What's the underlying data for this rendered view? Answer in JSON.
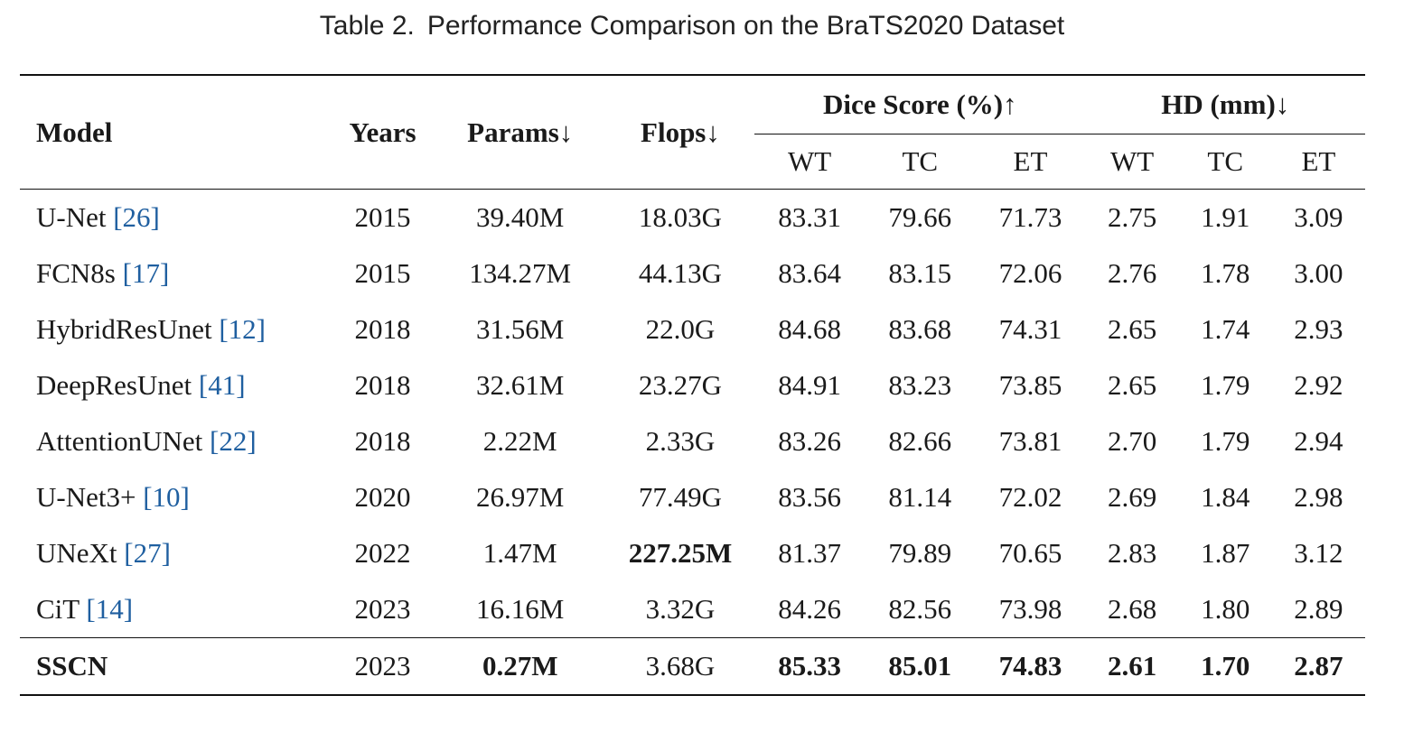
{
  "caption": {
    "label": "Table 2.",
    "text": "Performance Comparison on the BraTS2020 Dataset"
  },
  "header": {
    "model": "Model",
    "years": "Years",
    "params": "Params↓",
    "flops": "Flops↓",
    "dice_group": "Dice Score (%)↑",
    "hd_group": "HD (mm)↓",
    "dice_sub": [
      "WT",
      "TC",
      "ET"
    ],
    "hd_sub": [
      "WT",
      "TC",
      "ET"
    ]
  },
  "rows": [
    {
      "name": "U-Net",
      "ref": "[26]",
      "year": "2015",
      "params": "39.40M",
      "flops": "18.03G",
      "dice": [
        "83.31",
        "79.66",
        "71.73"
      ],
      "hd": [
        "2.75",
        "1.91",
        "3.09"
      ]
    },
    {
      "name": "FCN8s",
      "ref": "[17]",
      "year": "2015",
      "params": "134.27M",
      "flops": "44.13G",
      "dice": [
        "83.64",
        "83.15",
        "72.06"
      ],
      "hd": [
        "2.76",
        "1.78",
        "3.00"
      ]
    },
    {
      "name": "HybridResUnet",
      "ref": "[12]",
      "year": "2018",
      "params": "31.56M",
      "flops": "22.0G",
      "dice": [
        "84.68",
        "83.68",
        "74.31"
      ],
      "hd": [
        "2.65",
        "1.74",
        "2.93"
      ]
    },
    {
      "name": "DeepResUnet",
      "ref": "[41]",
      "year": "2018",
      "params": "32.61M",
      "flops": "23.27G",
      "dice": [
        "84.91",
        "83.23",
        "73.85"
      ],
      "hd": [
        "2.65",
        "1.79",
        "2.92"
      ]
    },
    {
      "name": "AttentionUNet",
      "ref": "[22]",
      "year": "2018",
      "params": "2.22M",
      "flops": "2.33G",
      "dice": [
        "83.26",
        "82.66",
        "73.81"
      ],
      "hd": [
        "2.70",
        "1.79",
        "2.94"
      ]
    },
    {
      "name": "U-Net3+",
      "ref": "[10]",
      "year": "2020",
      "params": "26.97M",
      "flops": "77.49G",
      "dice": [
        "83.56",
        "81.14",
        "72.02"
      ],
      "hd": [
        "2.69",
        "1.84",
        "2.98"
      ]
    },
    {
      "name": "UNeXt",
      "ref": "[27]",
      "year": "2022",
      "params": "1.47M",
      "flops": "227.25M",
      "dice": [
        "81.37",
        "79.89",
        "70.65"
      ],
      "hd": [
        "2.83",
        "1.87",
        "3.12"
      ]
    },
    {
      "name": "CiT",
      "ref": "[14]",
      "year": "2023",
      "params": "16.16M",
      "flops": "3.32G",
      "dice": [
        "84.26",
        "82.56",
        "73.98"
      ],
      "hd": [
        "2.68",
        "1.80",
        "2.89"
      ]
    }
  ],
  "final_row": {
    "name": "SSCN",
    "year": "2023",
    "params": "0.27M",
    "flops": "3.68G",
    "dice": [
      "85.33",
      "85.01",
      "74.83"
    ],
    "hd": [
      "2.61",
      "1.70",
      "2.87"
    ]
  }
}
